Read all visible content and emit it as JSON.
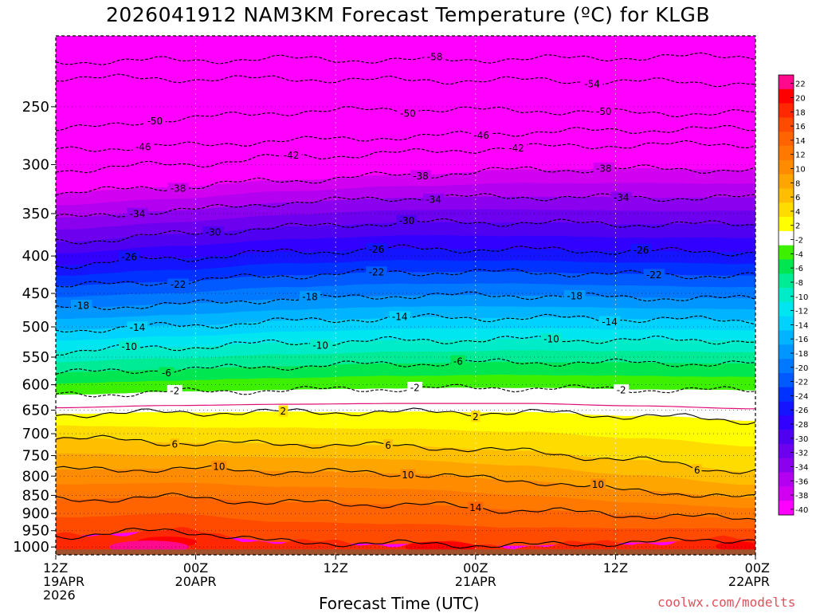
{
  "chart_data": {
    "type": "heatmap",
    "title": "2026041912 NAM3KM Forecast Temperature (ºC) for KLGB",
    "xlabel": "Forecast Time (UTC)",
    "ylabel": "",
    "credit": "coolwx.com/modelts",
    "x_ticks": [
      {
        "hour": 0,
        "lines": [
          "12Z",
          "19APR",
          "2026"
        ]
      },
      {
        "hour": 12,
        "lines": [
          "00Z",
          "20APR"
        ]
      },
      {
        "hour": 24,
        "lines": [
          "12Z"
        ]
      },
      {
        "hour": 36,
        "lines": [
          "00Z",
          "21APR"
        ]
      },
      {
        "hour": 48,
        "lines": [
          "12Z"
        ]
      },
      {
        "hour": 60,
        "lines": [
          "00Z",
          "22APR"
        ]
      }
    ],
    "xlim_hours": [
      0,
      60
    ],
    "y_scale": "log-pressure, inverted",
    "ylim_hpa": [
      1025,
      200
    ],
    "y_ticks": [
      250,
      300,
      350,
      400,
      450,
      500,
      550,
      600,
      650,
      700,
      750,
      800,
      850,
      900,
      950,
      1000
    ],
    "colorbar": {
      "ticks": [
        22,
        20,
        18,
        16,
        14,
        12,
        10,
        8,
        6,
        4,
        2,
        -2,
        -4,
        -6,
        -8,
        -10,
        -12,
        -14,
        -16,
        -18,
        -20,
        -22,
        -24,
        -26,
        -28,
        -30,
        -32,
        -34,
        -36,
        -38,
        -40
      ],
      "colors": [
        "#ff0a8c",
        "#ff0000",
        "#ff2800",
        "#ff4b00",
        "#ff6400",
        "#ff7800",
        "#ff8c00",
        "#ffa500",
        "#ffbe00",
        "#ffdc00",
        "#ffff00",
        "#ffffff",
        "#3cf000",
        "#00e650",
        "#00eb96",
        "#00ebc8",
        "#00e6f0",
        "#00d2ff",
        "#00b4ff",
        "#0096ff",
        "#0078ff",
        "#005aff",
        "#0032ff",
        "#1414ff",
        "#3200ff",
        "#5000f0",
        "#6e00f0",
        "#8c00f0",
        "#b400f0",
        "#d200f0",
        "#ff00ff"
      ]
    },
    "contour_levels": [
      {
        "value": -58,
        "label": "-58",
        "pressure": [
          217,
          216,
          215,
          216,
          215,
          214,
          213
        ]
      },
      {
        "value": -54,
        "label": "-54",
        "pressure": [
          228,
          229,
          229,
          230,
          230,
          231,
          232
        ]
      },
      {
        "value": -50,
        "label": "-50",
        "pressure": [
          269,
          260,
          254,
          252,
          253,
          255,
          255
        ]
      },
      {
        "value": -46,
        "label": "-46",
        "pressure": [
          286,
          283,
          278,
          275,
          271,
          269,
          268
        ]
      },
      {
        "value": -42,
        "label": "-42",
        "pressure": [
          305,
          300,
          293,
          289,
          284,
          282,
          281
        ]
      },
      {
        "value": -38,
        "label": "-38",
        "pressure": [
          328,
          322,
          315,
          310,
          305,
          304,
          305
        ]
      },
      {
        "value": -34,
        "label": "-34",
        "pressure": [
          355,
          347,
          338,
          333,
          332,
          333,
          333
        ]
      },
      {
        "value": -30,
        "label": "-30",
        "pressure": [
          383,
          374,
          365,
          360,
          360,
          362,
          362
        ]
      },
      {
        "value": -26,
        "label": "-26",
        "pressure": [
          412,
          403,
          395,
          391,
          392,
          394,
          395
        ]
      },
      {
        "value": -22,
        "label": "-22",
        "pressure": [
          440,
          434,
          425,
          421,
          421,
          424,
          426
        ]
      },
      {
        "value": -18,
        "label": "-18",
        "pressure": [
          472,
          466,
          458,
          453,
          453,
          456,
          458
        ]
      },
      {
        "value": -14,
        "label": "-14",
        "pressure": [
          505,
          499,
          491,
          486,
          486,
          488,
          490
        ]
      },
      {
        "value": -10,
        "label": "-10",
        "pressure": [
          540,
          533,
          526,
          522,
          520,
          521,
          522
        ]
      },
      {
        "value": -6,
        "label": "-6",
        "pressure": [
          578,
          572,
          566,
          561,
          559,
          560,
          562
        ]
      },
      {
        "value": -2,
        "label": "-2",
        "pressure": [
          620,
          614,
          610,
          607,
          606,
          609,
          611
        ]
      },
      {
        "value": 2,
        "label": "2",
        "pressure": [
          658,
          655,
          654,
          654,
          655,
          662,
          672
        ]
      },
      {
        "value": 6,
        "label": "6",
        "pressure": [
          708,
          720,
          723,
          728,
          740,
          762,
          790
        ]
      },
      {
        "value": 10,
        "label": "10",
        "pressure": [
          785,
          782,
          788,
          794,
          812,
          838,
          858
        ]
      },
      {
        "value": 14,
        "label": "14",
        "pressure": [
          862,
          855,
          870,
          875,
          890,
          905,
          915
        ]
      },
      {
        "value": 18,
        "label": "18",
        "pressure": [
          965,
          950,
          985,
          990,
          995,
          985,
          975
        ]
      }
    ],
    "contour_label_positions": [
      {
        "label": "-58",
        "hour": 32.5
      },
      {
        "label": "-54",
        "hour": 46
      },
      {
        "label": "-50",
        "hour": 8.5
      },
      {
        "label": "-50",
        "hour": 30.2
      },
      {
        "label": "-50",
        "hour": 47
      },
      {
        "label": "-46",
        "hour": 7.5
      },
      {
        "label": "-46",
        "hour": 36.5
      },
      {
        "label": "-42",
        "hour": 20.2
      },
      {
        "label": "-42",
        "hour": 39.5
      },
      {
        "label": "-38",
        "hour": 10.5
      },
      {
        "label": "-38",
        "hour": 31.3
      },
      {
        "label": "-38",
        "hour": 47
      },
      {
        "label": "-34",
        "hour": 7
      },
      {
        "label": "-34",
        "hour": 32.4
      },
      {
        "label": "-34",
        "hour": 48.5
      },
      {
        "label": "-30",
        "hour": 13.5
      },
      {
        "label": "-30",
        "hour": 30.1
      },
      {
        "label": "-26",
        "hour": 6.3
      },
      {
        "label": "-26",
        "hour": 27.5
      },
      {
        "label": "-26",
        "hour": 50.2
      },
      {
        "label": "-22",
        "hour": 10.5
      },
      {
        "label": "-22",
        "hour": 27.5
      },
      {
        "label": "-22",
        "hour": 51.3
      },
      {
        "label": "-18",
        "hour": 2.2
      },
      {
        "label": "-18",
        "hour": 21.8
      },
      {
        "label": "-18",
        "hour": 44.5
      },
      {
        "label": "-14",
        "hour": 7
      },
      {
        "label": "-14",
        "hour": 29.5
      },
      {
        "label": "-14",
        "hour": 47.5
      },
      {
        "label": "-10",
        "hour": 6.3
      },
      {
        "label": "-10",
        "hour": 22.7
      },
      {
        "label": "-10",
        "hour": 42.5
      },
      {
        "label": "-6",
        "hour": 9.5
      },
      {
        "label": "-6",
        "hour": 34.5
      },
      {
        "label": "-2",
        "hour": 10.2
      },
      {
        "label": "-2",
        "hour": 30.8
      },
      {
        "label": "-2",
        "hour": 48.5
      },
      {
        "label": "2",
        "hour": 19.5
      },
      {
        "label": "2",
        "hour": 36
      },
      {
        "label": "6",
        "hour": 10.2
      },
      {
        "label": "6",
        "hour": 28.5
      },
      {
        "label": "6",
        "hour": 55
      },
      {
        "label": "10",
        "hour": 14
      },
      {
        "label": "10",
        "hour": 30.2
      },
      {
        "label": "10",
        "hour": 46.5
      },
      {
        "label": "14",
        "hour": 36
      }
    ]
  }
}
